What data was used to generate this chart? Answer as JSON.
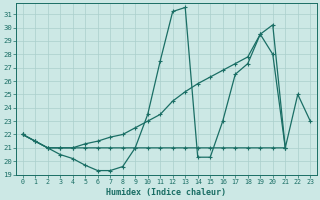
{
  "xlabel": "Humidex (Indice chaleur)",
  "xlim": [
    -0.5,
    23.5
  ],
  "ylim": [
    19,
    31.8
  ],
  "yticks": [
    19,
    20,
    21,
    22,
    23,
    24,
    25,
    26,
    27,
    28,
    29,
    30,
    31
  ],
  "xticks": [
    0,
    1,
    2,
    3,
    4,
    5,
    6,
    7,
    8,
    9,
    10,
    11,
    12,
    13,
    14,
    15,
    16,
    17,
    18,
    19,
    20,
    21,
    22,
    23
  ],
  "bg_color": "#cce8e5",
  "line_color": "#1a6e65",
  "grid_color": "#aacfcc",
  "line1_x": [
    0,
    1,
    2,
    3,
    4,
    5,
    6,
    7,
    8,
    9,
    10,
    11,
    12,
    13,
    14,
    15,
    16,
    17,
    18,
    19,
    20,
    21,
    22,
    23
  ],
  "line1_y": [
    22.0,
    21.5,
    21.0,
    20.5,
    20.2,
    19.7,
    19.3,
    19.3,
    19.6,
    21.0,
    23.5,
    27.5,
    31.2,
    31.5,
    20.3,
    20.3,
    23.0,
    26.5,
    27.3,
    29.5,
    30.2,
    21.0,
    25.0,
    23.0
  ],
  "line2_x": [
    0,
    1,
    2,
    3,
    4,
    5,
    6,
    7,
    8,
    9,
    10,
    11,
    12,
    13,
    14,
    15,
    16,
    17,
    18,
    19,
    20,
    21
  ],
  "line2_y": [
    22.0,
    21.5,
    21.0,
    21.0,
    21.0,
    21.3,
    21.5,
    21.8,
    22.0,
    22.5,
    23.0,
    23.5,
    24.5,
    25.2,
    25.8,
    26.3,
    26.8,
    27.3,
    27.8,
    29.5,
    28.0,
    21.0
  ],
  "line3_x": [
    0,
    1,
    2,
    3,
    4,
    5,
    6,
    7,
    8,
    9,
    10,
    11,
    12,
    13,
    14,
    15,
    16,
    17,
    18,
    19,
    20,
    21
  ],
  "line3_y": [
    22.0,
    21.5,
    21.0,
    21.0,
    21.0,
    21.0,
    21.0,
    21.0,
    21.0,
    21.0,
    21.0,
    21.0,
    21.0,
    21.0,
    21.0,
    21.0,
    21.0,
    21.0,
    21.0,
    21.0,
    21.0,
    21.0
  ]
}
